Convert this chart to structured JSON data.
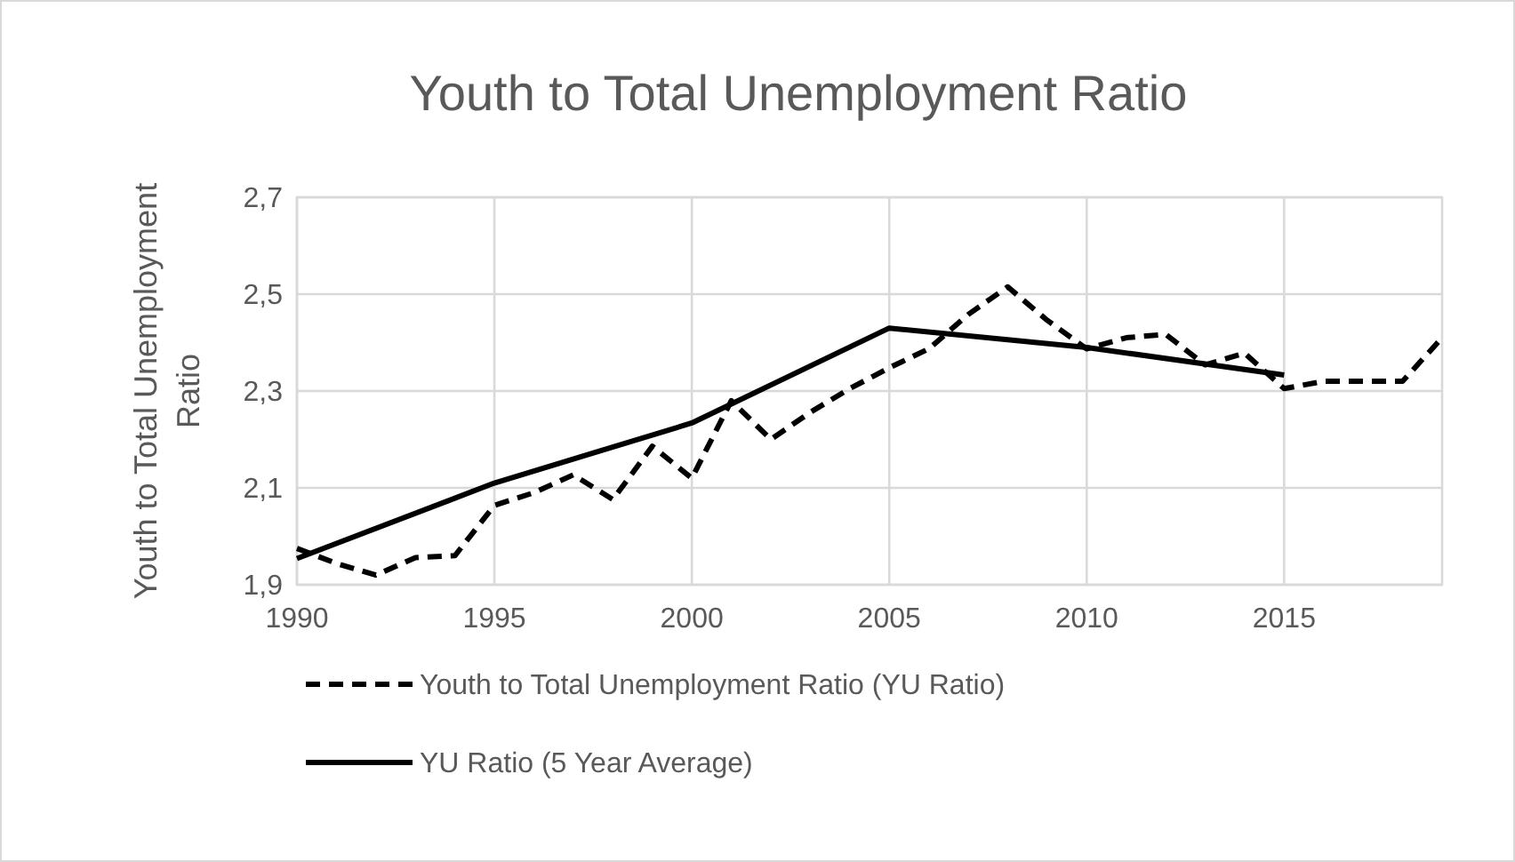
{
  "chart_data": {
    "type": "line",
    "title": "Youth to Total Unemployment Ratio",
    "ylabel": "Youth to Total Unemployment Ratio",
    "xlim": [
      1990,
      2019
    ],
    "xticks": [
      1990,
      1995,
      2000,
      2005,
      2010,
      2015
    ],
    "ylim": [
      1.9,
      2.7
    ],
    "yticks": [
      {
        "value": 1.9,
        "label": "1,9"
      },
      {
        "value": 2.1,
        "label": "2,1"
      },
      {
        "value": 2.3,
        "label": "2,3"
      },
      {
        "value": 2.5,
        "label": "2,5"
      },
      {
        "value": 2.7,
        "label": "2,7"
      }
    ],
    "grid": true,
    "legend": "bottom",
    "series": [
      {
        "name": "Youth to Total Unemployment Ratio (YU Ratio)",
        "color": "#000000",
        "line_style": "dashed",
        "x": [
          1990,
          1991,
          1992,
          1993,
          1994,
          1995,
          1996,
          1997,
          1998,
          1999,
          2000,
          2001,
          2002,
          2003,
          2004,
          2005,
          2006,
          2007,
          2008,
          2009,
          2010,
          2011,
          2012,
          2013,
          2014,
          2015,
          2016,
          2017,
          2018,
          2019
        ],
        "values": [
          1.975,
          1.944,
          1.92,
          1.956,
          1.96,
          2.064,
          2.09,
          2.127,
          2.076,
          2.186,
          2.12,
          2.28,
          2.2,
          2.256,
          2.305,
          2.348,
          2.387,
          2.458,
          2.515,
          2.446,
          2.387,
          2.41,
          2.417,
          2.354,
          2.378,
          2.305,
          2.32,
          2.32,
          2.32,
          2.41
        ]
      },
      {
        "name": "YU Ratio (5 Year Average)",
        "color": "#000000",
        "line_style": "solid",
        "x": [
          1990,
          1995,
          2000,
          2005,
          2010,
          2015
        ],
        "values": [
          1.954,
          2.11,
          2.234,
          2.43,
          2.39,
          2.333
        ]
      }
    ]
  }
}
